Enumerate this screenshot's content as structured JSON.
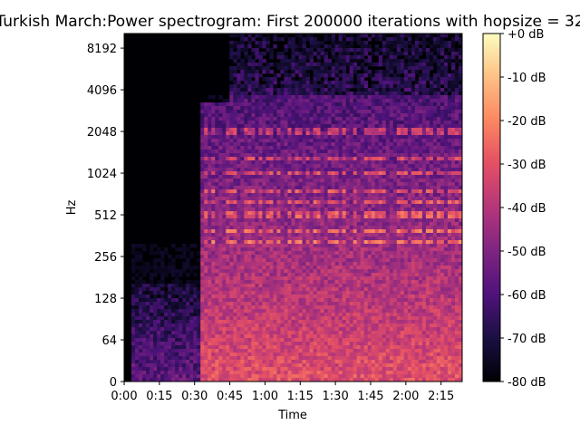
{
  "chart_data": {
    "type": "heatmap",
    "title": "Turkish March:Power spectrogram: First 200000 iterations with hopsize = 32",
    "xlabel": "Time",
    "ylabel": "Hz",
    "x_range_seconds": [
      0,
      144
    ],
    "x_tick_labels": [
      "0:00",
      "0:15",
      "0:30",
      "0:45",
      "1:00",
      "1:15",
      "1:30",
      "1:45",
      "2:00",
      "2:15"
    ],
    "x_tick_values_seconds": [
      0,
      15,
      30,
      45,
      60,
      75,
      90,
      105,
      120,
      135
    ],
    "y_scale": "symlog",
    "y_tick_labels": [
      "0",
      "64",
      "128",
      "256",
      "512",
      "1024",
      "2048",
      "4096",
      "8192"
    ],
    "y_tick_values_hz": [
      0,
      64,
      128,
      256,
      512,
      1024,
      2048,
      4096,
      8192
    ],
    "colorbar": {
      "colormap": "magma",
      "range_db": [
        -80,
        0
      ],
      "tick_labels": [
        "+0 dB",
        "-10 dB",
        "-20 dB",
        "-30 dB",
        "-40 dB",
        "-50 dB",
        "-60 dB",
        "-70 dB",
        "-80 dB"
      ],
      "tick_values_db": [
        0,
        -10,
        -20,
        -30,
        -40,
        -50,
        -60,
        -70,
        -80
      ]
    },
    "grid": false,
    "description_points": {
      "music_onset_seconds": 32,
      "strong_harmonic_bands_hz": [
        320,
        384,
        512,
        640,
        768,
        1024,
        1280,
        2048
      ]
    }
  }
}
